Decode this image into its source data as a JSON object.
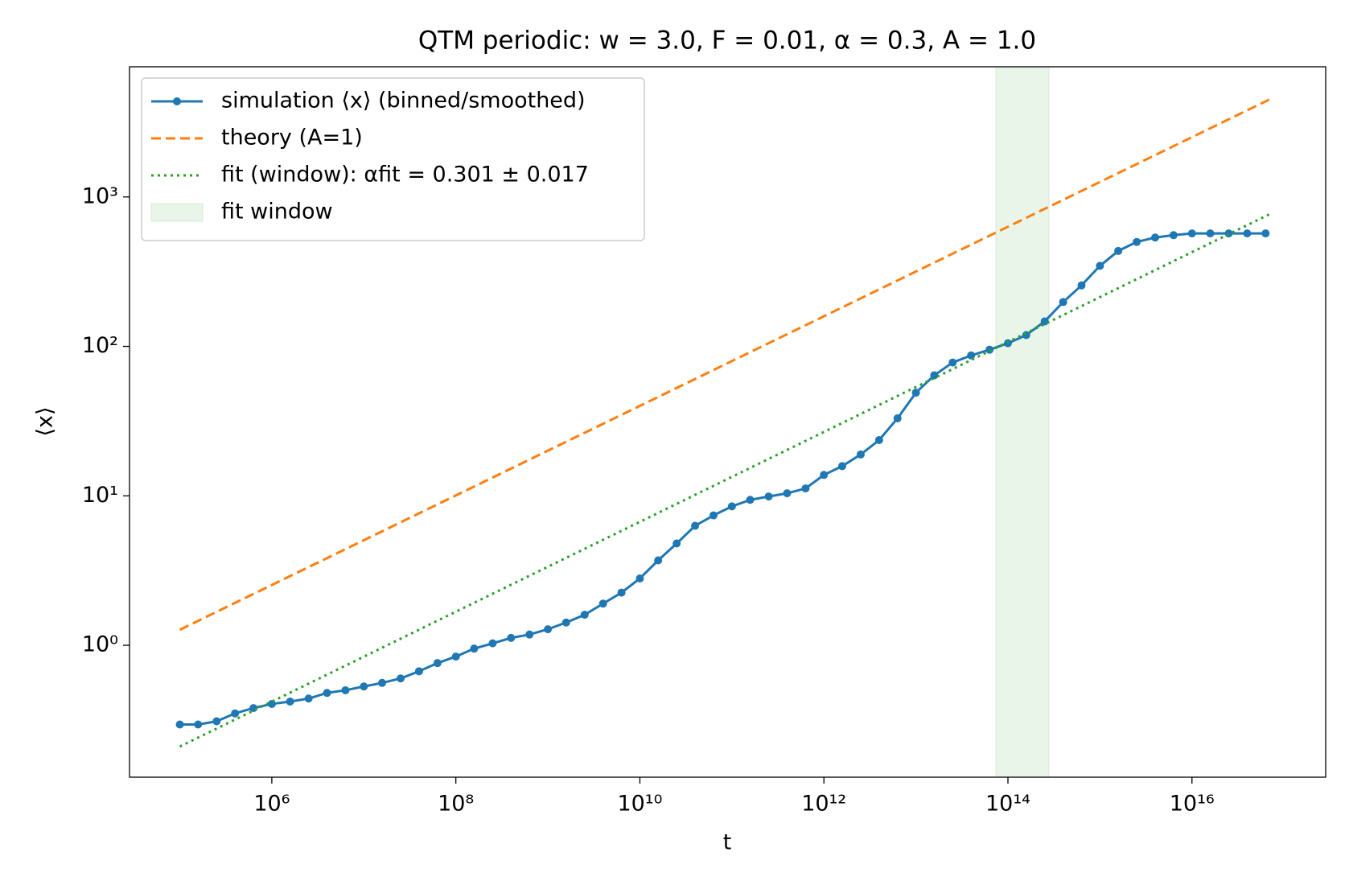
{
  "chart_data": {
    "type": "line",
    "title": "QTM periodic: w = 3.0, F = 0.01, α = 0.3, A = 1.0",
    "x_label": "t",
    "y_label": "⟨x⟩",
    "xscale": "log",
    "yscale": "log",
    "xlim": [
      28400,
      2.84e+17
    ],
    "ylim": [
      0.131,
      7430
    ],
    "xticks": [
      {
        "value": 1000000.0,
        "label": "10⁶"
      },
      {
        "value": 100000000.0,
        "label": "10⁸"
      },
      {
        "value": 10000000000.0,
        "label": "10¹⁰"
      },
      {
        "value": 1000000000000.0,
        "label": "10¹²"
      },
      {
        "value": 100000000000000.0,
        "label": "10¹⁴"
      },
      {
        "value": 1e+16,
        "label": "10¹⁶"
      }
    ],
    "yticks": [
      {
        "value": 1,
        "label": "10⁰"
      },
      {
        "value": 10,
        "label": "10¹"
      },
      {
        "value": 100,
        "label": "10²"
      },
      {
        "value": 1000,
        "label": "10³"
      }
    ],
    "legend": "upper left",
    "series": [
      {
        "name": "simulation ⟨x⟩ (binned/smoothed)",
        "color": "#1f77b4",
        "linestyle": "solid",
        "marker": true,
        "x": [
          100000.0,
          158000.0,
          251000.0,
          398000.0,
          631000.0,
          1000000.0,
          1580000.0,
          2510000.0,
          3980000.0,
          6310000.0,
          10000000.0,
          15800000.0,
          25100000.0,
          39800000.0,
          63100000.0,
          100000000.0,
          158000000.0,
          251000000.0,
          398000000.0,
          631000000.0,
          1000000000.0,
          1580000000.0,
          2510000000.0,
          3980000000.0,
          6310000000.0,
          10000000000.0,
          15800000000.0,
          25100000000.0,
          39800000000.0,
          63100000000.0,
          100000000000.0,
          158000000000.0,
          251000000000.0,
          398000000000.0,
          631000000000.0,
          1000000000000.0,
          1580000000000.0,
          2510000000000.0,
          3980000000000.0,
          6310000000000.0,
          10000000000000.0,
          15800000000000.0,
          25100000000000.0,
          39800000000000.0,
          63100000000000.0,
          100000000000000.0,
          158000000000000.0,
          251000000000000.0,
          398000000000000.0,
          631000000000000.0,
          1000000000000000.0,
          1580000000000000.0,
          2510000000000000.0,
          3980000000000000.0,
          6310000000000000.0,
          1e+16,
          1.58e+16,
          2.51e+16,
          3.98e+16,
          6.31e+16
        ],
        "values": [
          0.295,
          0.295,
          0.31,
          0.35,
          0.38,
          0.405,
          0.42,
          0.44,
          0.48,
          0.5,
          0.53,
          0.56,
          0.6,
          0.67,
          0.76,
          0.84,
          0.95,
          1.03,
          1.12,
          1.18,
          1.28,
          1.42,
          1.6,
          1.9,
          2.25,
          2.8,
          3.7,
          4.8,
          6.3,
          7.4,
          8.5,
          9.4,
          9.9,
          10.4,
          11.2,
          13.8,
          15.8,
          18.9,
          23.6,
          33,
          49,
          64,
          78,
          87,
          95,
          105,
          119,
          147,
          198,
          256,
          346,
          435,
          500,
          535,
          555,
          570,
          570,
          570,
          570,
          570
        ]
      },
      {
        "name": "theory (A=1)",
        "color": "#ff7f0e",
        "linestyle": "dashed",
        "marker": false,
        "x": [
          100000.0,
          7e+16
        ],
        "values": [
          1.27,
          4500
        ]
      },
      {
        "name": "fit (window): αfit = 0.301 ± 0.017",
        "color": "#2ca02c",
        "linestyle": "dotted",
        "marker": false,
        "x": [
          100000.0,
          7e+16
        ],
        "values": [
          0.21,
          767
        ]
      }
    ],
    "spans": [
      {
        "name": "fit window",
        "xlim": [
          74000000000000.0,
          280000000000000.0
        ],
        "color": "#2ca02c"
      }
    ]
  }
}
